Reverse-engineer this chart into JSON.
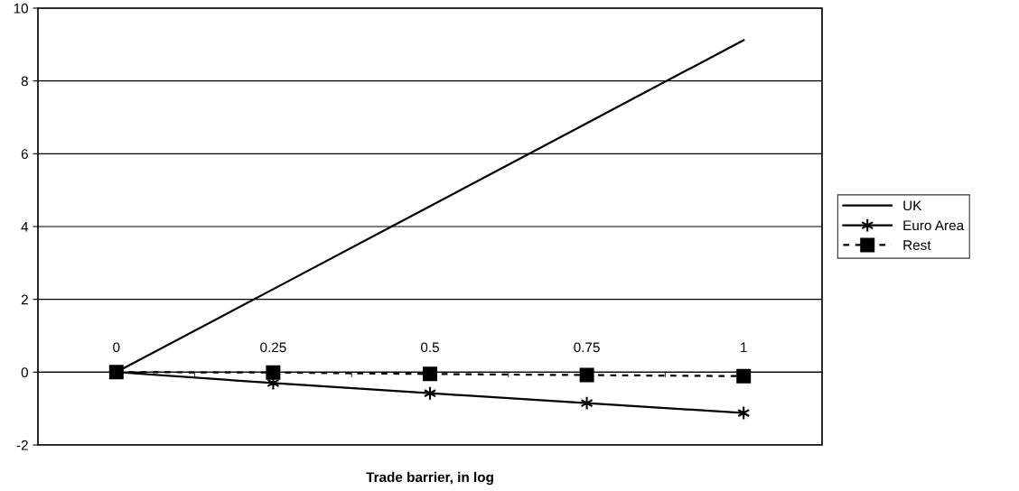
{
  "chart_data": {
    "type": "line",
    "xlabel": "Trade barrier, in log",
    "categories": [
      "0",
      "0.25",
      "0.5",
      "0.75",
      "1"
    ],
    "series": [
      {
        "name": "UK",
        "color": "#000000",
        "values": [
          0,
          2.28,
          4.56,
          6.84,
          9.12
        ],
        "marker": "none",
        "line_style": "solid"
      },
      {
        "name": "Euro Area",
        "color": "#000000",
        "values": [
          0,
          -0.3,
          -0.58,
          -0.85,
          -1.12
        ],
        "marker": "cross",
        "line_style": "solid"
      },
      {
        "name": "Rest",
        "color": "#000000",
        "values": [
          0,
          -0.01,
          -0.05,
          -0.08,
          -0.11
        ],
        "marker": "square",
        "line_style": "dashed"
      }
    ],
    "ylim": [
      -2,
      10
    ],
    "yticks": [
      -2,
      0,
      2,
      4,
      6,
      8,
      10
    ],
    "grid": "y",
    "legend": "right"
  }
}
